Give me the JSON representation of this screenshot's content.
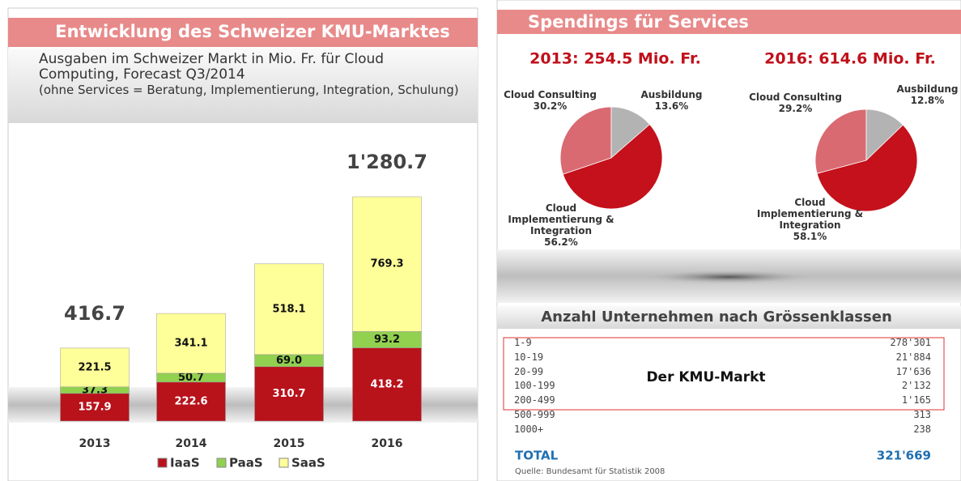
{
  "chart_data": [
    {
      "type": "stacked_bar",
      "title": "Entwicklung des Schweizer KMU-Marktes",
      "subtitle": "Ausgaben im Schweizer Markt in Mio. Fr. für Cloud Computing, Forecast Q3/2014",
      "note": "(ohne Services = Beratung, Implementierung, Integration, Schulung)",
      "categories": [
        "2013",
        "2014",
        "2015",
        "2016"
      ],
      "series": [
        {
          "name": "IaaS",
          "color": "#b8121b",
          "values": [
            157.9,
            222.6,
            310.7,
            418.2
          ]
        },
        {
          "name": "PaaS",
          "color": "#92d050",
          "values": [
            37.3,
            50.7,
            69.0,
            93.2
          ],
          "value_labels": [
            "37.3",
            "50.7",
            "69.0",
            "93.2"
          ]
        },
        {
          "name": "SaaS",
          "color": "#ffff99",
          "values": [
            221.5,
            341.1,
            518.1,
            769.3
          ]
        }
      ],
      "totals": [
        {
          "value": 416.7,
          "label": "416.7"
        },
        null,
        null,
        {
          "value": 1280.7,
          "label": "1'280.7"
        }
      ]
    },
    {
      "type": "pie",
      "title": "2013: 254.5 Mio. Fr.",
      "categories": [
        "Cloud Consulting",
        "Ausbildung",
        "Cloud Implementierung & Integration"
      ],
      "values": [
        30.2,
        13.6,
        56.2
      ],
      "value_labels": [
        "30.2%",
        "13.6%",
        "56.2%"
      ],
      "colors": [
        "#d96a72",
        "#b3b3b3",
        "#c4111b"
      ]
    },
    {
      "type": "pie",
      "title": "2016: 614.6 Mio. Fr.",
      "categories": [
        "Cloud Consulting",
        "Ausbildung",
        "Cloud Implementierung & Integration"
      ],
      "values": [
        29.2,
        12.8,
        58.1
      ],
      "value_labels": [
        "29.2%",
        "12.8%",
        "58.1%"
      ],
      "colors": [
        "#d96a72",
        "#b3b3b3",
        "#c4111b"
      ]
    }
  ],
  "services_title": "Spendings für Services",
  "table": {
    "title": "Anzahl Unternehmen nach Grössenklassen",
    "highlight_label": "Der KMU-Markt",
    "rows": [
      [
        "1-9",
        "278'301"
      ],
      [
        "10-19",
        "21'884"
      ],
      [
        "20-99",
        "17'636"
      ],
      [
        "100-199",
        "2'132"
      ],
      [
        "200-499",
        "1'165"
      ],
      [
        "500-999",
        "313"
      ],
      [
        "1000+",
        "238"
      ]
    ],
    "total": [
      "TOTAL",
      "321'669"
    ],
    "source": "Quelle: Bundesamt für Statistik 2008"
  }
}
